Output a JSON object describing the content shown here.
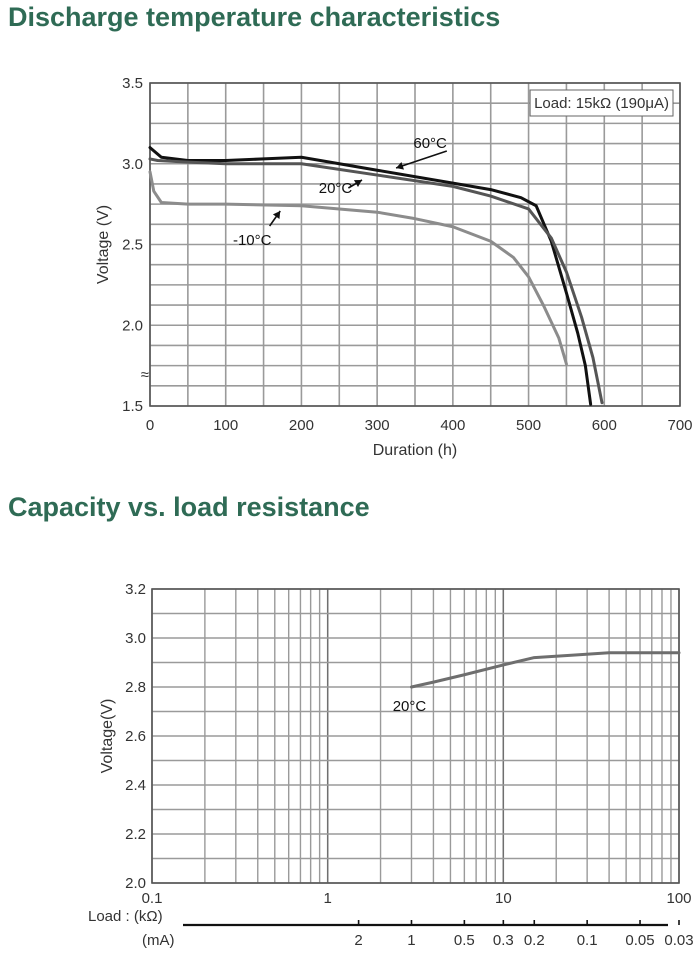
{
  "section_titles": [
    "Discharge temperature characteristics",
    "Capacity vs. load resistance"
  ],
  "chart_data": [
    {
      "type": "line",
      "title": "Discharge temperature characteristics",
      "xlabel": "Duration (h)",
      "ylabel": "Voltage (V)",
      "xlim": [
        0,
        700
      ],
      "ylim": [
        1.5,
        3.5
      ],
      "x_ticks": [
        "0",
        "100",
        "200",
        "300",
        "400",
        "500",
        "600",
        "700"
      ],
      "y_ticks": [
        "1.5",
        "2.0",
        "2.5",
        "3.0",
        "3.5"
      ],
      "axis_break_mark": "≈",
      "grid": true,
      "annotation_box": "Load: 15kΩ (190μA)",
      "series": [
        {
          "name": "60°C",
          "color": "#111111",
          "x": [
            0,
            15,
            50,
            100,
            150,
            200,
            300,
            400,
            450,
            490,
            510,
            530,
            550,
            565,
            575,
            582
          ],
          "y": [
            3.1,
            3.04,
            3.02,
            3.02,
            3.03,
            3.04,
            2.96,
            2.88,
            2.84,
            2.79,
            2.74,
            2.52,
            2.2,
            1.95,
            1.75,
            1.51
          ]
        },
        {
          "name": "20°C",
          "color": "#555555",
          "x": [
            0,
            10,
            50,
            100,
            200,
            300,
            400,
            450,
            500,
            530,
            550,
            570,
            585,
            597
          ],
          "y": [
            3.03,
            3.02,
            3.01,
            3.0,
            3.0,
            2.93,
            2.86,
            2.8,
            2.72,
            2.54,
            2.33,
            2.05,
            1.8,
            1.52
          ]
        },
        {
          "name": "-10°C",
          "color": "#8c8c8c",
          "x": [
            0,
            5,
            15,
            50,
            100,
            200,
            300,
            350,
            400,
            450,
            480,
            500,
            520,
            540,
            550
          ],
          "y": [
            2.95,
            2.83,
            2.76,
            2.75,
            2.75,
            2.74,
            2.7,
            2.66,
            2.61,
            2.52,
            2.42,
            2.3,
            2.12,
            1.92,
            1.76
          ]
        }
      ],
      "labels": [
        {
          "text": "60°C",
          "series": "60°C"
        },
        {
          "text": "20°C",
          "series": "20°C"
        },
        {
          "text": "-10°C",
          "series": "-10°C"
        }
      ]
    },
    {
      "type": "line",
      "title": "Capacity vs. load resistance",
      "xlabel": "Load : (kΩ)",
      "x_secondary_label": "(mA)",
      "ylabel": "Voltage(V)",
      "x_scale": "log",
      "xlim": [
        0.1,
        100
      ],
      "ylim": [
        2.0,
        3.2
      ],
      "x_ticks": [
        "0.1",
        "1",
        "10",
        "100"
      ],
      "y_ticks": [
        "2.0",
        "2.2",
        "2.4",
        "2.6",
        "2.8",
        "3.0",
        "3.2"
      ],
      "grid": true,
      "current_scale": [
        {
          "value": 2,
          "label": "2"
        },
        {
          "value": 1,
          "label": "1"
        },
        {
          "value": 0.5,
          "label": "0.5"
        },
        {
          "value": 0.3,
          "label": "0.3"
        },
        {
          "value": 0.2,
          "label": "0.2"
        },
        {
          "value": 0.1,
          "label": "0.1"
        },
        {
          "value": 0.05,
          "label": "0.05"
        },
        {
          "value": 0.03,
          "label": "0.03"
        }
      ],
      "series": [
        {
          "name": "20°C",
          "color": "#6e6e6e",
          "x": [
            3,
            4,
            6,
            10,
            15,
            25,
            40,
            60,
            100
          ],
          "y": [
            2.8,
            2.82,
            2.85,
            2.89,
            2.92,
            2.93,
            2.94,
            2.94,
            2.94
          ]
        }
      ],
      "labels": [
        {
          "text": "20°C",
          "series": "20°C"
        }
      ]
    }
  ]
}
